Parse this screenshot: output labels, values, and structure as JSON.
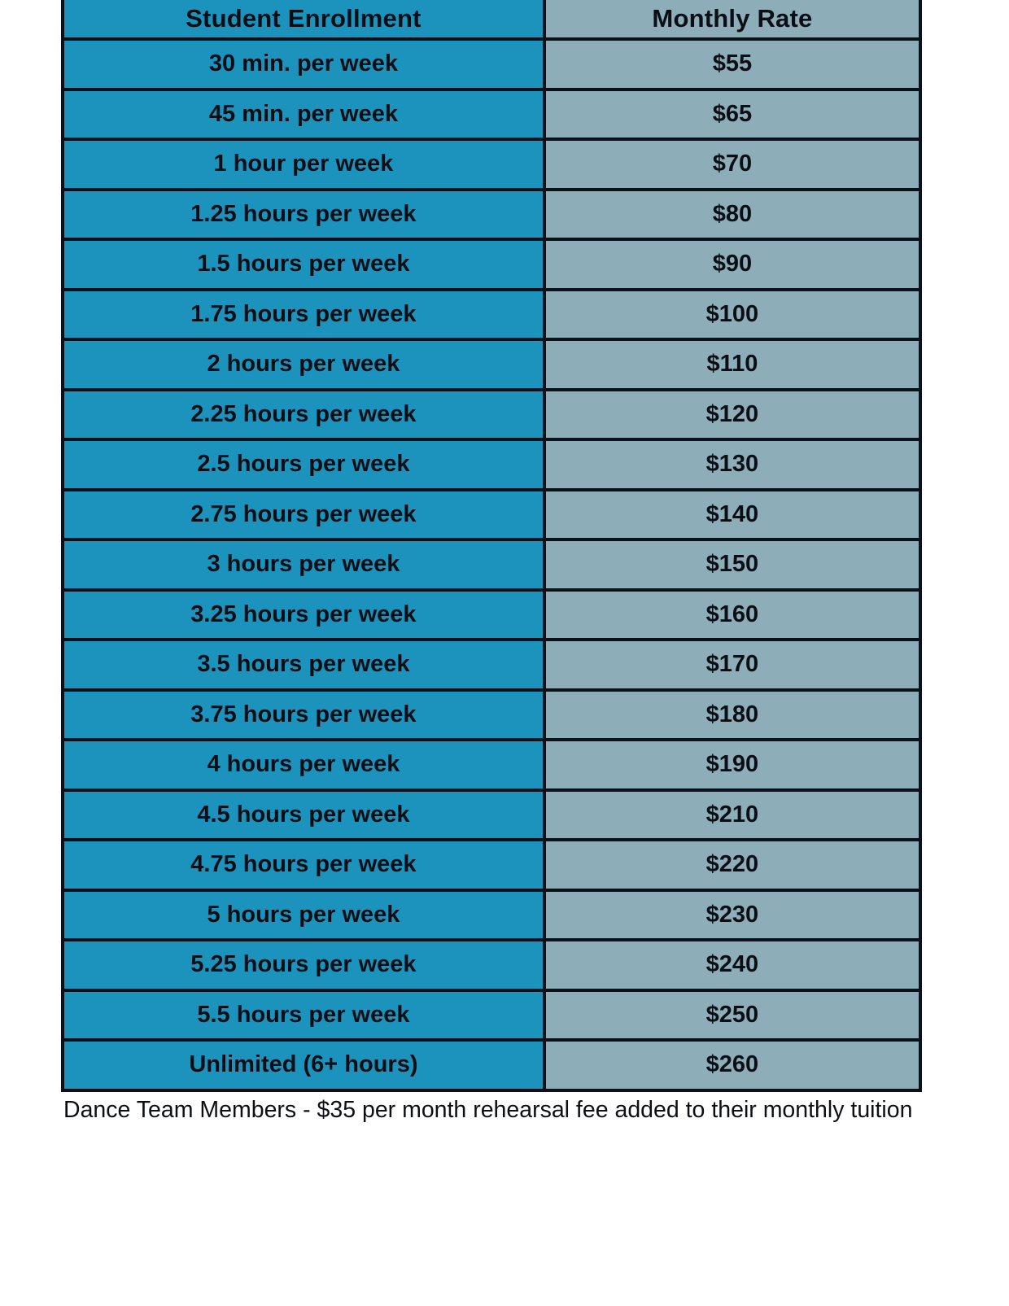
{
  "table": {
    "headers": [
      "Student Enrollment",
      "Monthly Rate"
    ],
    "rows": [
      {
        "enrollment": "30 min. per week",
        "rate": "$55"
      },
      {
        "enrollment": "45 min. per week",
        "rate": "$65"
      },
      {
        "enrollment": "1 hour per week",
        "rate": "$70"
      },
      {
        "enrollment": "1.25 hours per week",
        "rate": "$80"
      },
      {
        "enrollment": "1.5 hours per week",
        "rate": "$90"
      },
      {
        "enrollment": "1.75 hours per week",
        "rate": "$100"
      },
      {
        "enrollment": "2 hours per week",
        "rate": "$110"
      },
      {
        "enrollment": "2.25 hours per week",
        "rate": "$120"
      },
      {
        "enrollment": "2.5 hours per week",
        "rate": "$130"
      },
      {
        "enrollment": "2.75 hours per week",
        "rate": "$140"
      },
      {
        "enrollment": "3 hours per week",
        "rate": "$150"
      },
      {
        "enrollment": "3.25 hours per week",
        "rate": "$160"
      },
      {
        "enrollment": "3.5 hours per week",
        "rate": "$170"
      },
      {
        "enrollment": "3.75 hours per week",
        "rate": "$180"
      },
      {
        "enrollment": "4 hours per week",
        "rate": "$190"
      },
      {
        "enrollment": "4.5 hours per week",
        "rate": "$210"
      },
      {
        "enrollment": "4.75 hours per week",
        "rate": "$220"
      },
      {
        "enrollment": "5 hours per week",
        "rate": "$230"
      },
      {
        "enrollment": "5.25 hours per week",
        "rate": "$240"
      },
      {
        "enrollment": "5.5 hours per week",
        "rate": "$250"
      },
      {
        "enrollment": "Unlimited (6+ hours)",
        "rate": "$260"
      }
    ]
  },
  "footnote": "Dance Team Members - $35 per month rehearsal fee added to their monthly tuition",
  "colors": {
    "left_cell": "#1b93bd",
    "right_cell": "#8dadb9",
    "border": "#0c1119",
    "text": "#0b0f15"
  }
}
